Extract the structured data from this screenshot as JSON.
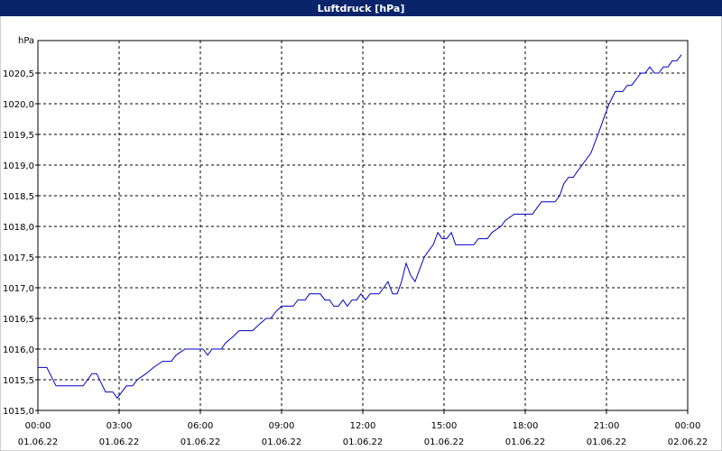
{
  "chart_data": {
    "type": "line",
    "title": "Luftdruck [hPa]",
    "y_label": "hPa",
    "xlim": [
      0,
      24
    ],
    "ylim": [
      1015,
      1021
    ],
    "grid": true,
    "xticks": [
      {
        "value": 0,
        "label": "00:00"
      },
      {
        "value": 3,
        "label": "03:00"
      },
      {
        "value": 6,
        "label": "06:00"
      },
      {
        "value": 9,
        "label": "09:00"
      },
      {
        "value": 12,
        "label": "12:00"
      },
      {
        "value": 15,
        "label": "15:00"
      },
      {
        "value": 18,
        "label": "18:00"
      },
      {
        "value": 21,
        "label": "21:00"
      },
      {
        "value": 24,
        "label": "00:00"
      }
    ],
    "xtick_dates": [
      "01.06.22",
      "01.06.22",
      "01.06.22",
      "01.06.22",
      "01.06.22",
      "01.06.22",
      "01.06.22",
      "01.06.22",
      "02.06.22"
    ],
    "yticks": [
      {
        "value": 1015,
        "label": "1015,0"
      },
      {
        "value": 1015.5,
        "label": "1015,5"
      },
      {
        "value": 1016,
        "label": "1016,0"
      },
      {
        "value": 1016.5,
        "label": "1016,5"
      },
      {
        "value": 1017,
        "label": "1017,0"
      },
      {
        "value": 1017.5,
        "label": "1017,5"
      },
      {
        "value": 1018,
        "label": "1018,0"
      },
      {
        "value": 1018.5,
        "label": "1018,5"
      },
      {
        "value": 1019,
        "label": "1019,0"
      },
      {
        "value": 1019.5,
        "label": "1019,5"
      },
      {
        "value": 1020,
        "label": "1020,0"
      },
      {
        "value": 1020.5,
        "label": "1020,5"
      }
    ],
    "color": "#0000cc",
    "x": [
      0,
      0.33,
      0.67,
      1.67,
      2.0,
      2.17,
      2.5,
      2.77,
      2.93,
      3.27,
      3.5,
      3.67,
      4.0,
      4.27,
      4.6,
      4.93,
      5.1,
      5.43,
      6.1,
      6.27,
      6.43,
      6.77,
      6.93,
      7.2,
      7.43,
      7.93,
      8.17,
      8.43,
      8.6,
      8.77,
      9.0,
      9.43,
      9.6,
      9.87,
      10.03,
      10.43,
      10.6,
      10.77,
      10.93,
      11.1,
      11.27,
      11.43,
      11.6,
      11.77,
      11.93,
      12.1,
      12.27,
      12.6,
      12.77,
      12.93,
      13.1,
      13.27,
      13.43,
      13.6,
      13.77,
      13.93,
      14.1,
      14.27,
      14.43,
      14.6,
      14.77,
      14.93,
      15.1,
      15.27,
      15.43,
      16.1,
      16.27,
      16.6,
      16.77,
      17.1,
      17.27,
      17.6,
      18.27,
      18.43,
      18.6,
      19.1,
      19.27,
      19.43,
      19.6,
      19.77,
      19.93,
      20.1,
      20.43,
      20.6,
      20.77,
      20.93,
      21.1,
      21.33,
      21.6,
      21.77,
      21.93,
      22.1,
      22.27,
      22.43,
      22.6,
      22.77,
      22.93,
      23.1,
      23.27,
      23.43,
      23.6,
      23.77
    ],
    "values": [
      1015.7,
      1015.7,
      1015.4,
      1015.4,
      1015.6,
      1015.6,
      1015.3,
      1015.3,
      1015.2,
      1015.4,
      1015.4,
      1015.5,
      1015.6,
      1015.7,
      1015.8,
      1015.8,
      1015.9,
      1016.0,
      1016.0,
      1015.9,
      1016.0,
      1016.0,
      1016.1,
      1016.2,
      1016.3,
      1016.3,
      1016.4,
      1016.5,
      1016.5,
      1016.6,
      1016.7,
      1016.7,
      1016.8,
      1016.8,
      1016.9,
      1016.9,
      1016.8,
      1016.8,
      1016.7,
      1016.7,
      1016.8,
      1016.7,
      1016.8,
      1016.8,
      1016.9,
      1016.8,
      1016.9,
      1016.9,
      1017.0,
      1017.1,
      1016.9,
      1016.9,
      1017.1,
      1017.4,
      1017.2,
      1017.1,
      1017.3,
      1017.5,
      1017.6,
      1017.7,
      1017.9,
      1017.8,
      1017.8,
      1017.9,
      1017.7,
      1017.7,
      1017.8,
      1017.8,
      1017.9,
      1018.0,
      1018.1,
      1018.2,
      1018.2,
      1018.3,
      1018.4,
      1018.4,
      1018.5,
      1018.7,
      1018.8,
      1018.8,
      1018.9,
      1019.0,
      1019.2,
      1019.4,
      1019.6,
      1019.8,
      1020.0,
      1020.2,
      1020.2,
      1020.3,
      1020.3,
      1020.4,
      1020.5,
      1020.5,
      1020.6,
      1020.5,
      1020.5,
      1020.6,
      1020.6,
      1020.7,
      1020.7,
      1020.8
    ]
  }
}
